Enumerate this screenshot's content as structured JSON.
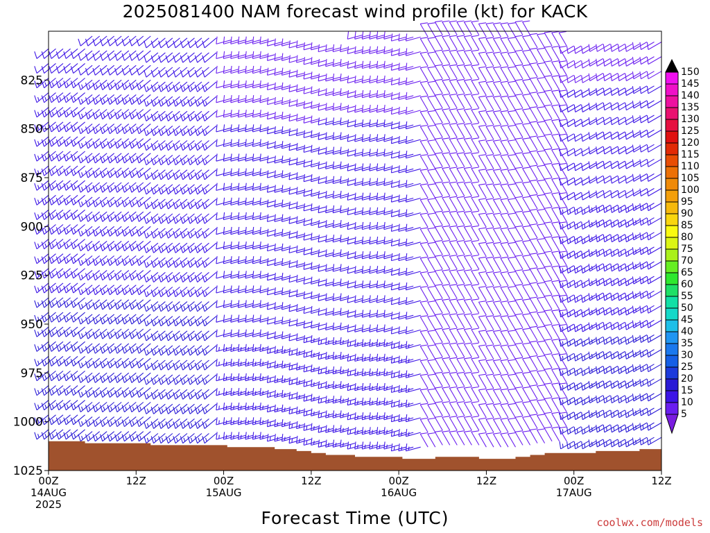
{
  "title": "2025081400 NAM forecast wind profile (kt) for KACK",
  "xlabel": "Forecast Time (UTC)",
  "credit": "coolwx.com/models",
  "colors": {
    "terrain": "#a0522d",
    "axis": "#000000"
  },
  "chart_data": {
    "type": "wind-profile",
    "title": "2025081400 NAM forecast wind profile (kt) for KACK",
    "xlabel": "Forecast Time (UTC)",
    "ylabel": "",
    "x_range_hours": [
      0,
      84
    ],
    "y_range_hpa": [
      800,
      1025
    ],
    "y_ticks": [
      825,
      850,
      875,
      900,
      925,
      950,
      975,
      1000,
      1025
    ],
    "x_ticks": [
      {
        "hour": 0,
        "lines": [
          "00Z",
          "14AUG",
          "2025"
        ]
      },
      {
        "hour": 12,
        "lines": [
          "12Z"
        ]
      },
      {
        "hour": 24,
        "lines": [
          "00Z",
          "15AUG"
        ]
      },
      {
        "hour": 36,
        "lines": [
          "12Z"
        ]
      },
      {
        "hour": 48,
        "lines": [
          "00Z",
          "16AUG"
        ]
      },
      {
        "hour": 60,
        "lines": [
          "12Z"
        ]
      },
      {
        "hour": 72,
        "lines": [
          "00Z",
          "17AUG"
        ]
      },
      {
        "hour": 84,
        "lines": [
          "12Z"
        ]
      }
    ],
    "surface_pressure": [
      {
        "hour": 0,
        "hpa": 1010
      },
      {
        "hour": 4.5,
        "hpa": 1010
      },
      {
        "hour": 5,
        "hpa": 1011
      },
      {
        "hour": 13.5,
        "hpa": 1011
      },
      {
        "hour": 14,
        "hpa": 1012
      },
      {
        "hour": 24,
        "hpa": 1012
      },
      {
        "hour": 24.5,
        "hpa": 1013
      },
      {
        "hour": 30,
        "hpa": 1013
      },
      {
        "hour": 31,
        "hpa": 1014
      },
      {
        "hour": 33,
        "hpa": 1014
      },
      {
        "hour": 34,
        "hpa": 1015
      },
      {
        "hour": 36,
        "hpa": 1016
      },
      {
        "hour": 38,
        "hpa": 1017
      },
      {
        "hour": 42,
        "hpa": 1018
      },
      {
        "hour": 48,
        "hpa": 1018
      },
      {
        "hour": 48.5,
        "hpa": 1019
      },
      {
        "hour": 52,
        "hpa": 1019
      },
      {
        "hour": 53,
        "hpa": 1018
      },
      {
        "hour": 58,
        "hpa": 1018
      },
      {
        "hour": 59,
        "hpa": 1019
      },
      {
        "hour": 63,
        "hpa": 1019
      },
      {
        "hour": 64,
        "hpa": 1018
      },
      {
        "hour": 66,
        "hpa": 1017
      },
      {
        "hour": 68,
        "hpa": 1016
      },
      {
        "hour": 74,
        "hpa": 1016
      },
      {
        "hour": 75,
        "hpa": 1015
      },
      {
        "hour": 80,
        "hpa": 1015
      },
      {
        "hour": 81,
        "hpa": 1014
      },
      {
        "hour": 84,
        "hpa": 1014
      }
    ],
    "legend": {
      "placement": "right",
      "unit": "kt",
      "levels": [
        5,
        10,
        15,
        20,
        25,
        30,
        35,
        40,
        45,
        50,
        55,
        60,
        65,
        70,
        75,
        80,
        85,
        90,
        95,
        100,
        105,
        110,
        115,
        120,
        125,
        130,
        135,
        140,
        145,
        150
      ],
      "colors": [
        "#7a1de0",
        "#6a1ef0",
        "#3c14e6",
        "#2a1ad6",
        "#1c3adc",
        "#155fe6",
        "#1a78ee",
        "#1f95f2",
        "#1dbfe8",
        "#14d9c8",
        "#11e0a6",
        "#1ee066",
        "#2ee82e",
        "#66ee22",
        "#aaf01a",
        "#dcf514",
        "#fafa10",
        "#f9d60e",
        "#f6b90c",
        "#f39f0a",
        "#f08a08",
        "#ec7006",
        "#e84d04",
        "#e22a05",
        "#e01010",
        "#e61040",
        "#ea1070",
        "#ee10a0",
        "#f010c8",
        "#f010ee"
      ]
    },
    "series": [
      {
        "name": "",
        "start_hour": 0,
        "end_hour": 23,
        "direction_deg": 230,
        "speed_kt_low": 17,
        "speed_kt_high": 12
      },
      {
        "name": "",
        "start_hour": 25,
        "end_hour": 51,
        "direction_deg": 255,
        "speed_kt_low": 14,
        "speed_kt_high": 9
      },
      {
        "name": "",
        "start_hour": 52,
        "end_hour": 71,
        "direction_deg": 330,
        "speed_kt_low": 8,
        "speed_kt_high": 8
      },
      {
        "name": "",
        "start_hour": 72,
        "end_hour": 84,
        "direction_deg": 240,
        "speed_kt_low": 18,
        "speed_kt_high": 9
      }
    ]
  }
}
